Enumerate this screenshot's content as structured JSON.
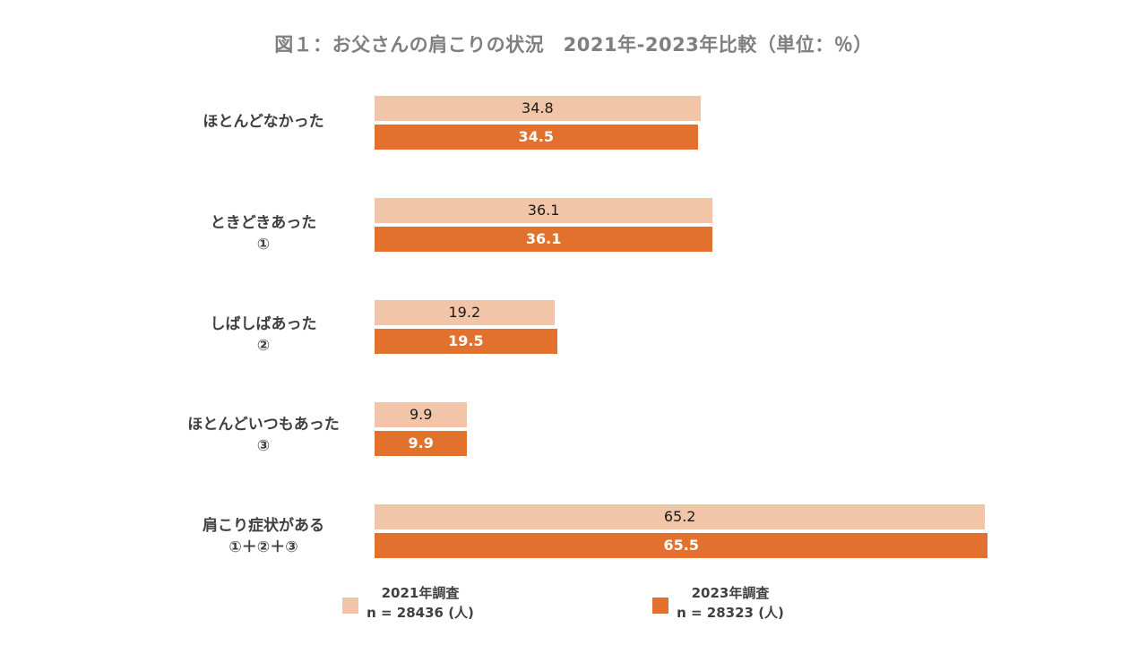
{
  "chart_data": {
    "type": "bar",
    "orientation": "horizontal",
    "title": "図１：お父さんの肩こりの状況　2021年-2023年比較（単位：％）",
    "categories": [
      {
        "line1": "ほとんどなかった",
        "line2": ""
      },
      {
        "line1": "ときどきあった",
        "line2": "①"
      },
      {
        "line1": "しばしばあった",
        "line2": "②"
      },
      {
        "line1": "ほとんどいつもあった",
        "line2": "③"
      },
      {
        "line1": "肩こり症状がある",
        "line2": "①＋②＋③"
      }
    ],
    "series": [
      {
        "name": "2021年調査",
        "sample": "n = 28436 (人)",
        "color": "#f3c5a8",
        "label_color": "#1a1a1a",
        "values": [
          34.8,
          36.1,
          19.2,
          9.9,
          65.2
        ]
      },
      {
        "name": "2023年調査",
        "sample": "n = 28323 (人)",
        "color": "#e2712e",
        "label_color": "#ffffff",
        "values": [
          34.5,
          36.1,
          19.5,
          9.9,
          65.5
        ]
      }
    ],
    "xlim": [
      0,
      70
    ],
    "grid": false,
    "legend_position": "bottom"
  }
}
